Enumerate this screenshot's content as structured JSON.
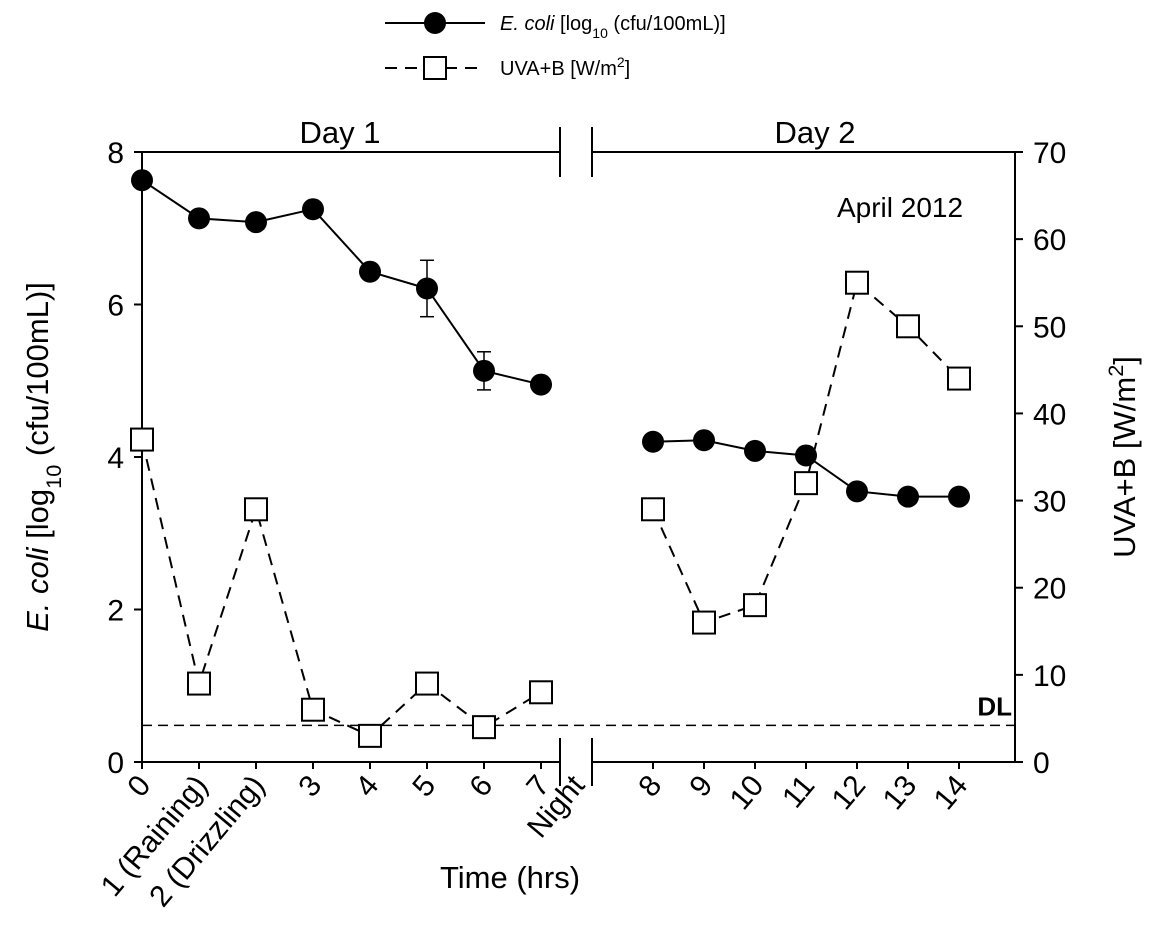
{
  "chart_data": {
    "type": "line",
    "day_labels": [
      "Day 1",
      "Day 2"
    ],
    "annotation": "April 2012",
    "detection_limit": {
      "label": "DL",
      "value": 0.48
    },
    "xlabel": "Time (hrs)",
    "ylabel": [
      {
        "text": "E. coli",
        "style": "italic"
      },
      {
        "text": " [log"
      },
      {
        "text": "10",
        "style": "sub"
      },
      {
        "text": " (cfu/100mL)]"
      }
    ],
    "y2label": [
      {
        "text": "UVA+B [W/m"
      },
      {
        "text": "2",
        "style": "sup"
      },
      {
        "text": "]"
      }
    ],
    "categories": [
      "0",
      "1 (Raining)",
      "2 (Drizzling)",
      "3",
      "4",
      "5",
      "6",
      "7",
      "Night",
      "8",
      "9",
      "10",
      "11",
      "12",
      "13",
      "14"
    ],
    "ylim": [
      0,
      8
    ],
    "yticks": [
      0,
      2,
      4,
      6,
      8
    ],
    "y2lim": [
      0,
      70
    ],
    "y2ticks": [
      0,
      10,
      20,
      30,
      40,
      50,
      60,
      70
    ],
    "series": [
      {
        "name": [
          {
            "text": "E. coli",
            "style": "italic"
          },
          {
            "text": " [log"
          },
          {
            "text": "10",
            "style": "sub"
          },
          {
            "text": " (cfu/100mL)]"
          }
        ],
        "color": "#000000",
        "marker": "circle",
        "line": "solid",
        "values": [
          7.63,
          7.13,
          7.08,
          7.25,
          6.43,
          6.21,
          5.13,
          4.95,
          null,
          4.2,
          4.22,
          4.08,
          4.02,
          3.55,
          3.48,
          3.48
        ],
        "errors": [
          0.05,
          0.05,
          0.05,
          0.05,
          0.05,
          0.37,
          0.25,
          0.05,
          null,
          0.05,
          0.05,
          0.05,
          0.05,
          0.05,
          0.05,
          0.05
        ]
      },
      {
        "name": [
          {
            "text": "UVA+B [W/m"
          },
          {
            "text": "2",
            "style": "sup"
          },
          {
            "text": "]"
          }
        ],
        "color": "#000000",
        "marker": "square",
        "line": "dashed",
        "axis": "y2",
        "values": [
          37,
          9,
          29,
          6,
          3,
          9,
          4,
          8,
          null,
          29,
          16,
          18,
          32,
          55,
          50,
          44
        ]
      }
    ]
  }
}
